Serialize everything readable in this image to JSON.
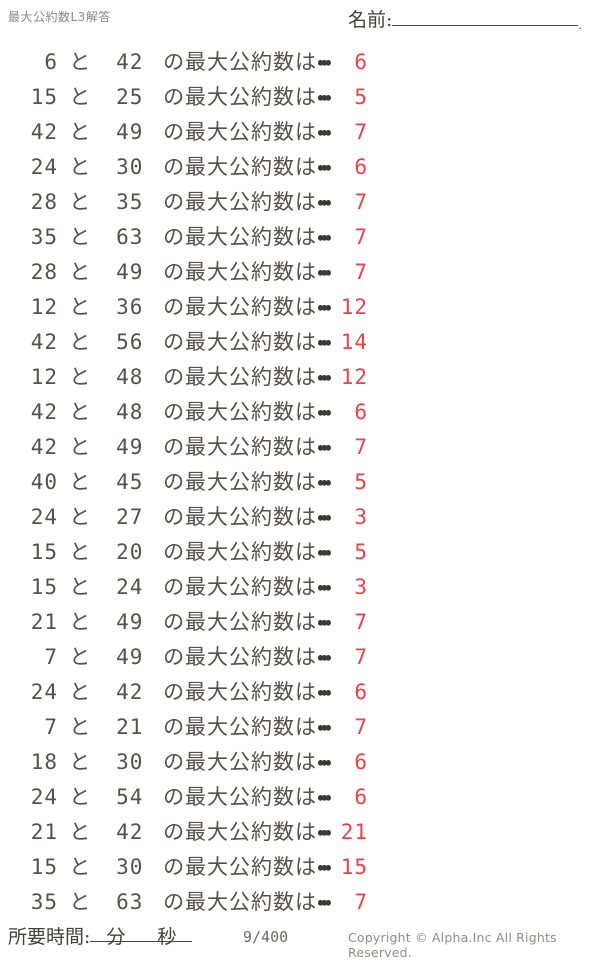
{
  "header": {
    "title": "最大公約数L3解答",
    "name_label": "名前:",
    "name_line_end": "."
  },
  "question": {
    "separator": "と",
    "phrase": "の最大公約数は",
    "dots": "・・・"
  },
  "problems": [
    {
      "a": "6",
      "b": "42",
      "answer": "6"
    },
    {
      "a": "15",
      "b": "25",
      "answer": "5"
    },
    {
      "a": "42",
      "b": "49",
      "answer": "7"
    },
    {
      "a": "24",
      "b": "30",
      "answer": "6"
    },
    {
      "a": "28",
      "b": "35",
      "answer": "7"
    },
    {
      "a": "35",
      "b": "63",
      "answer": "7"
    },
    {
      "a": "28",
      "b": "49",
      "answer": "7"
    },
    {
      "a": "12",
      "b": "36",
      "answer": "12"
    },
    {
      "a": "42",
      "b": "56",
      "answer": "14"
    },
    {
      "a": "12",
      "b": "48",
      "answer": "12"
    },
    {
      "a": "42",
      "b": "48",
      "answer": "6"
    },
    {
      "a": "42",
      "b": "49",
      "answer": "7"
    },
    {
      "a": "40",
      "b": "45",
      "answer": "5"
    },
    {
      "a": "24",
      "b": "27",
      "answer": "3"
    },
    {
      "a": "15",
      "b": "20",
      "answer": "5"
    },
    {
      "a": "15",
      "b": "24",
      "answer": "3"
    },
    {
      "a": "21",
      "b": "49",
      "answer": "7"
    },
    {
      "a": "7",
      "b": "49",
      "answer": "7"
    },
    {
      "a": "24",
      "b": "42",
      "answer": "6"
    },
    {
      "a": "7",
      "b": "21",
      "answer": "7"
    },
    {
      "a": "18",
      "b": "30",
      "answer": "6"
    },
    {
      "a": "24",
      "b": "54",
      "answer": "6"
    },
    {
      "a": "21",
      "b": "42",
      "answer": "21"
    },
    {
      "a": "15",
      "b": "30",
      "answer": "15"
    },
    {
      "a": "35",
      "b": "63",
      "answer": "7"
    }
  ],
  "footer": {
    "time_label": "所要時間:",
    "minutes_label": "分",
    "seconds_label": "秒",
    "page": "9/400",
    "copyright": "Copyright ©  Alpha.Inc All Rights Reserved."
  },
  "colors": {
    "answer_red": "#ef4048",
    "question_text": "#56504d",
    "muted_gray": "#8d8885"
  }
}
